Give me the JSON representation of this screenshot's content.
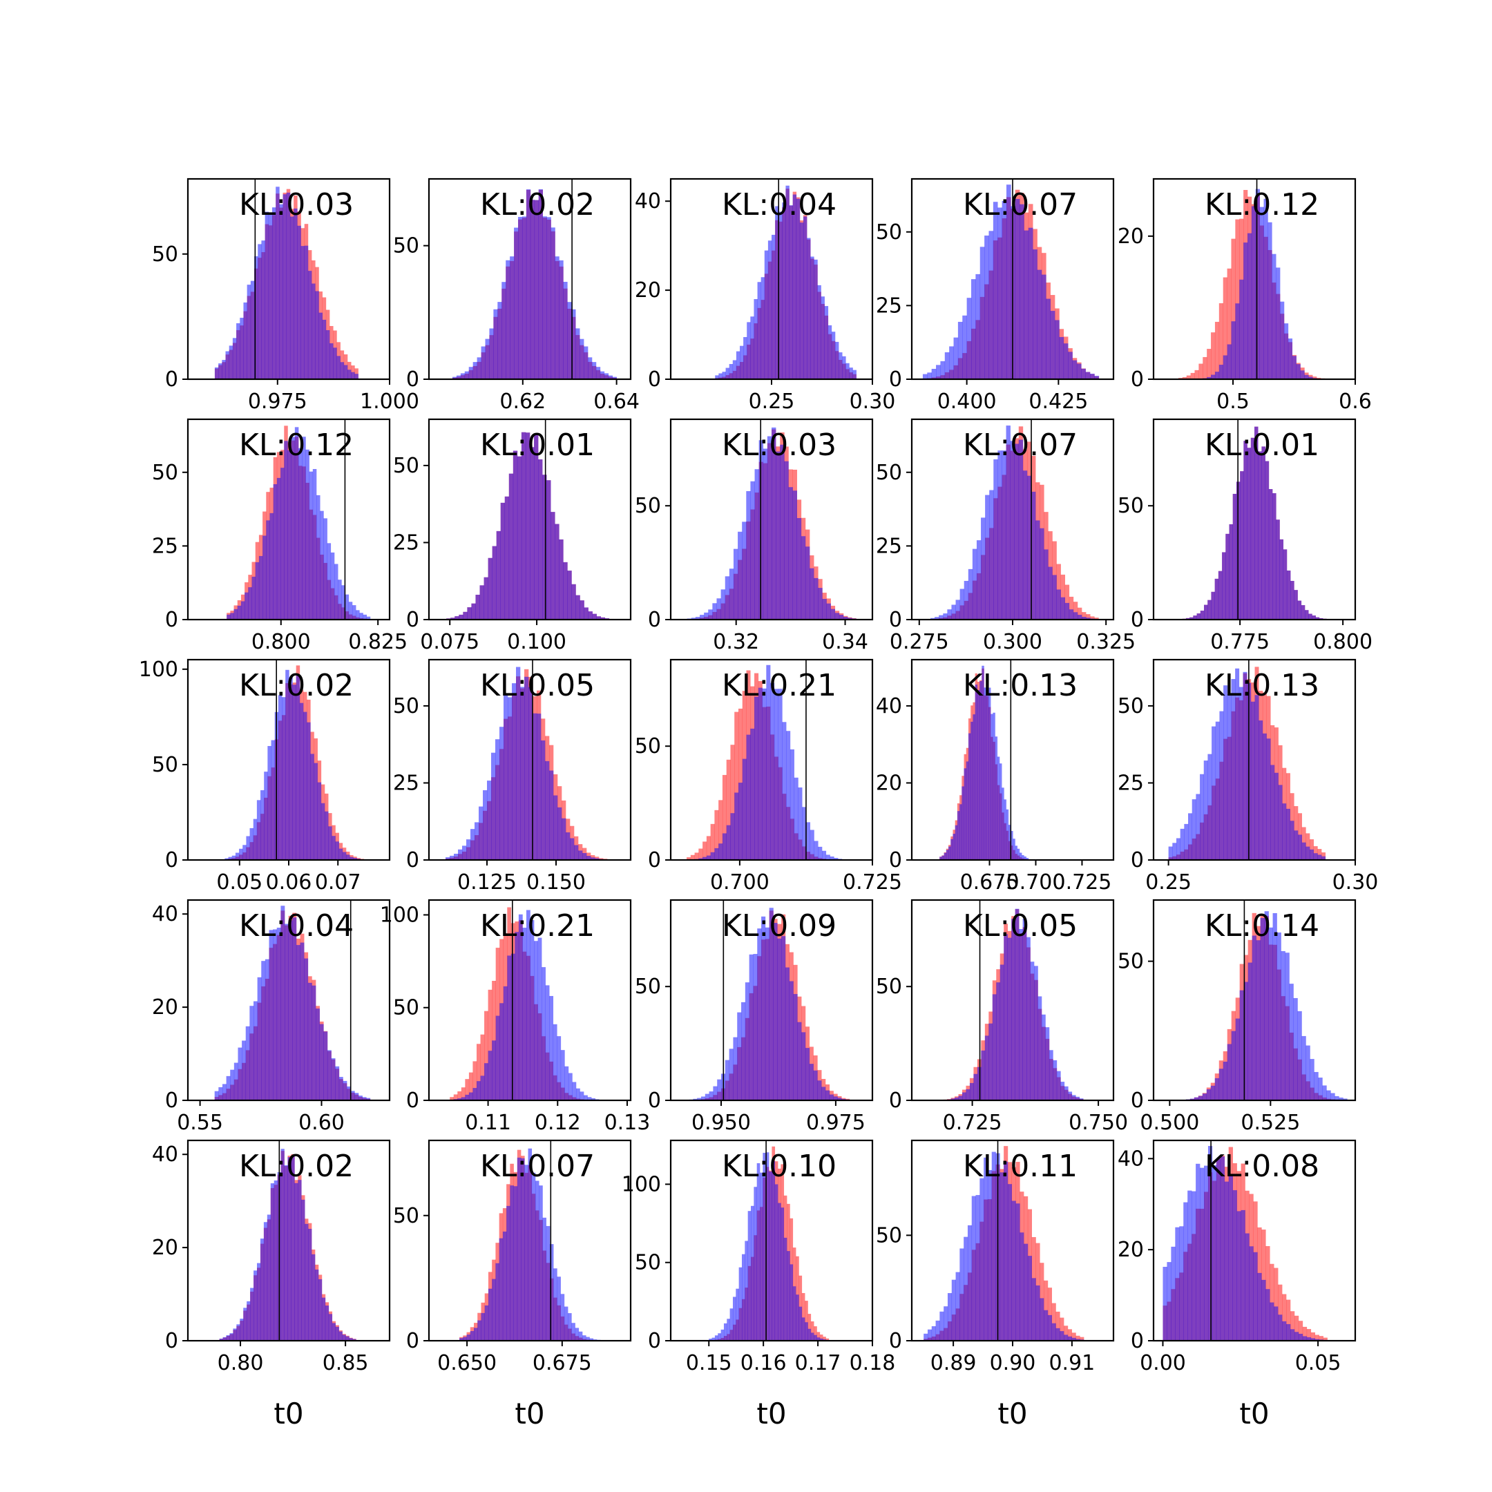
{
  "colors": {
    "series_a": "#ff0000",
    "series_b": "#0000ff",
    "truth_line": "#000000"
  },
  "chart_data": {
    "type": "histogram-grid",
    "rows": 5,
    "cols": 5,
    "series": [
      {
        "color": "#ff0000",
        "opacity": 0.5
      },
      {
        "color": "#0000ff",
        "opacity": 0.5
      }
    ],
    "panels": [
      {
        "kl": "KL:0.03",
        "xlim": [
          0.955,
          1.0
        ],
        "ylim": [
          0,
          80
        ],
        "xticks": [
          "0.975",
          "1.000"
        ],
        "xtick_vals": [
          0.975,
          1.0
        ],
        "yticks": [
          "0",
          "50"
        ],
        "ytick_vals": [
          0,
          50
        ],
        "truth": 0.97,
        "a": {
          "mu": 0.977,
          "sd": 0.0065
        },
        "b": {
          "mu": 0.976,
          "sd": 0.0062
        },
        "range": [
          0.961,
          0.993
        ]
      },
      {
        "kl": "KL:0.02",
        "xlim": [
          0.6,
          0.643
        ],
        "ylim": [
          0,
          75
        ],
        "xticks": [
          "0.62",
          "0.64"
        ],
        "xtick_vals": [
          0.62,
          0.64
        ],
        "yticks": [
          "0",
          "50"
        ],
        "ytick_vals": [
          0,
          50
        ],
        "truth": 0.6305,
        "a": {
          "mu": 0.6225,
          "sd": 0.0055
        },
        "b": {
          "mu": 0.6225,
          "sd": 0.0058
        },
        "range": [
          0.605,
          0.64
        ]
      },
      {
        "kl": "KL:0.04",
        "xlim": [
          0.2,
          0.3
        ],
        "ylim": [
          0,
          45
        ],
        "xticks": [
          "0.25",
          "0.30"
        ],
        "xtick_vals": [
          0.25,
          0.3
        ],
        "yticks": [
          "0",
          "20",
          "40"
        ],
        "ytick_vals": [
          0,
          20,
          40
        ],
        "truth": 0.2535,
        "a": {
          "mu": 0.26,
          "sd": 0.0115
        },
        "b": {
          "mu": 0.259,
          "sd": 0.013
        },
        "range": [
          0.222,
          0.292
        ]
      },
      {
        "kl": "KL:0.07",
        "xlim": [
          0.385,
          0.44
        ],
        "ylim": [
          0,
          68
        ],
        "xticks": [
          "0.400",
          "0.425"
        ],
        "xtick_vals": [
          0.4,
          0.425
        ],
        "yticks": [
          "0",
          "25",
          "50"
        ],
        "ytick_vals": [
          0,
          25,
          50
        ],
        "truth": 0.4125,
        "a": {
          "mu": 0.414,
          "sd": 0.0075
        },
        "b": {
          "mu": 0.4115,
          "sd": 0.0085
        },
        "range": [
          0.388,
          0.436
        ]
      },
      {
        "kl": "KL:0.12",
        "xlim": [
          0.435,
          0.6
        ],
        "ylim": [
          0,
          28
        ],
        "xticks": [
          "0.5",
          "0.6"
        ],
        "xtick_vals": [
          0.5,
          0.6
        ],
        "yticks": [
          "0",
          "20"
        ],
        "ytick_vals": [
          0,
          20
        ],
        "truth": 0.5195,
        "a": {
          "mu": 0.514,
          "sd": 0.018
        },
        "b": {
          "mu": 0.522,
          "sd": 0.014
        },
        "range": [
          0.452,
          0.585
        ]
      },
      {
        "kl": "KL:0.12",
        "xlim": [
          0.776,
          0.828
        ],
        "ylim": [
          0,
          68
        ],
        "xticks": [
          "0.800",
          "0.825"
        ],
        "xtick_vals": [
          0.8,
          0.825
        ],
        "yticks": [
          "0",
          "25",
          "50"
        ],
        "ytick_vals": [
          0,
          25,
          50
        ],
        "truth": 0.8165,
        "a": {
          "mu": 0.802,
          "sd": 0.006
        },
        "b": {
          "mu": 0.804,
          "sd": 0.0065
        },
        "range": [
          0.786,
          0.823
        ]
      },
      {
        "kl": "KL:0.01",
        "xlim": [
          0.069,
          0.127
        ],
        "ylim": [
          0,
          65
        ],
        "xticks": [
          "0.075",
          "0.100"
        ],
        "xtick_vals": [
          0.075,
          0.1
        ],
        "yticks": [
          "0",
          "25",
          "50"
        ],
        "ytick_vals": [
          0,
          25,
          50
        ],
        "truth": 0.1025,
        "a": {
          "mu": 0.0975,
          "sd": 0.0072
        },
        "b": {
          "mu": 0.0975,
          "sd": 0.0072
        },
        "range": [
          0.074,
          0.122
        ]
      },
      {
        "kl": "KL:0.03",
        "xlim": [
          0.308,
          0.345
        ],
        "ylim": [
          0,
          88
        ],
        "xticks": [
          "0.32",
          "0.34"
        ],
        "xtick_vals": [
          0.32,
          0.34
        ],
        "yticks": [
          "0",
          "50"
        ],
        "ytick_vals": [
          0,
          50
        ],
        "truth": 0.3245,
        "a": {
          "mu": 0.3275,
          "sd": 0.0045
        },
        "b": {
          "mu": 0.3265,
          "sd": 0.0047
        },
        "range": [
          0.311,
          0.342
        ]
      },
      {
        "kl": "KL:0.07",
        "xlim": [
          0.273,
          0.327
        ],
        "ylim": [
          0,
          68
        ],
        "xticks": [
          "0.275",
          "0.300",
          "0.325"
        ],
        "xtick_vals": [
          0.275,
          0.3,
          0.325
        ],
        "yticks": [
          "0",
          "25",
          "50"
        ],
        "ytick_vals": [
          0,
          25,
          50
        ],
        "truth": 0.305,
        "a": {
          "mu": 0.302,
          "sd": 0.0068
        },
        "b": {
          "mu": 0.2995,
          "sd": 0.0068
        },
        "range": [
          0.278,
          0.323
        ]
      },
      {
        "kl": "KL:0.01",
        "xlim": [
          0.754,
          0.803
        ],
        "ylim": [
          0,
          88
        ],
        "xticks": [
          "0.775",
          "0.800"
        ],
        "xtick_vals": [
          0.775,
          0.8
        ],
        "yticks": [
          "0",
          "50"
        ],
        "ytick_vals": [
          0,
          50
        ],
        "truth": 0.7745,
        "a": {
          "mu": 0.7785,
          "sd": 0.0052
        },
        "b": {
          "mu": 0.7785,
          "sd": 0.0052
        },
        "range": [
          0.761,
          0.796
        ]
      },
      {
        "kl": "KL:0.02",
        "xlim": [
          0.0395,
          0.0805
        ],
        "ylim": [
          0,
          105
        ],
        "xticks": [
          "0.05",
          "0.06",
          "0.07"
        ],
        "xtick_vals": [
          0.05,
          0.06,
          0.07
        ],
        "yticks": [
          "0",
          "50",
          "100"
        ],
        "ytick_vals": [
          0,
          50,
          100
        ],
        "truth": 0.0575,
        "a": {
          "mu": 0.0615,
          "sd": 0.0042
        },
        "b": {
          "mu": 0.0605,
          "sd": 0.0043
        },
        "range": [
          0.047,
          0.076
        ]
      },
      {
        "kl": "KL:0.05",
        "xlim": [
          0.104,
          0.177
        ],
        "ylim": [
          0,
          65
        ],
        "xticks": [
          "0.125",
          "0.150"
        ],
        "xtick_vals": [
          0.125,
          0.15
        ],
        "yticks": [
          "0",
          "25",
          "50"
        ],
        "ytick_vals": [
          0,
          25,
          50
        ],
        "truth": 0.1415,
        "a": {
          "mu": 0.139,
          "sd": 0.009
        },
        "b": {
          "mu": 0.137,
          "sd": 0.009
        },
        "range": [
          0.11,
          0.17
        ]
      },
      {
        "kl": "KL:0.21",
        "xlim": [
          0.687,
          0.725
        ],
        "ylim": [
          0,
          88
        ],
        "xticks": [
          "0.700",
          "0.725"
        ],
        "xtick_vals": [
          0.7,
          0.725
        ],
        "yticks": [
          "0",
          "50"
        ],
        "ytick_vals": [
          0,
          50
        ],
        "truth": 0.7125,
        "a": {
          "mu": 0.7025,
          "sd": 0.0042
        },
        "b": {
          "mu": 0.7055,
          "sd": 0.0042
        },
        "range": [
          0.69,
          0.72
        ]
      },
      {
        "kl": "KL:0.13",
        "xlim": [
          0.633,
          0.742
        ],
        "ylim": [
          0,
          52
        ],
        "xticks": [
          "0.675",
          "0.700",
          "0.725"
        ],
        "xtick_vals": [
          0.675,
          0.7,
          0.725
        ],
        "yticks": [
          "0",
          "20",
          "40"
        ],
        "ytick_vals": [
          0,
          20,
          40
        ],
        "truth": 0.6865,
        "a": {
          "mu": 0.67,
          "sd": 0.0075
        },
        "b": {
          "mu": 0.6715,
          "sd": 0.008
        },
        "range": [
          0.648,
          0.696
        ]
      },
      {
        "kl": "KL:0.13",
        "xlim": [
          0.246,
          0.3
        ],
        "ylim": [
          0,
          65
        ],
        "xticks": [
          "0.25",
          "0.30"
        ],
        "xtick_vals": [
          0.25,
          0.3
        ],
        "yticks": [
          "0",
          "25",
          "50"
        ],
        "ytick_vals": [
          0,
          25,
          50
        ],
        "truth": 0.2715,
        "a": {
          "mu": 0.2725,
          "sd": 0.0075
        },
        "b": {
          "mu": 0.269,
          "sd": 0.008
        },
        "range": [
          0.25,
          0.292
        ]
      },
      {
        "kl": "KL:0.04",
        "xlim": [
          0.545,
          0.628
        ],
        "ylim": [
          0,
          43
        ],
        "xticks": [
          "0.55",
          "0.60"
        ],
        "xtick_vals": [
          0.55,
          0.6
        ],
        "yticks": [
          "0",
          "20",
          "40"
        ],
        "ytick_vals": [
          0,
          20,
          40
        ],
        "truth": 0.612,
        "a": {
          "mu": 0.5865,
          "sd": 0.0105
        },
        "b": {
          "mu": 0.585,
          "sd": 0.0115
        },
        "range": [
          0.556,
          0.62
        ]
      },
      {
        "kl": "KL:0.21",
        "xlim": [
          0.1015,
          0.1305
        ],
        "ylim": [
          0,
          108
        ],
        "xticks": [
          "0.11",
          "0.12",
          "0.13"
        ],
        "xtick_vals": [
          0.11,
          0.12,
          0.13
        ],
        "yticks": [
          "0",
          "50",
          "100"
        ],
        "ytick_vals": [
          0,
          50,
          100
        ],
        "truth": 0.1135,
        "a": {
          "mu": 0.1135,
          "sd": 0.0031
        },
        "b": {
          "mu": 0.1155,
          "sd": 0.0032
        },
        "range": [
          0.1045,
          0.1265
        ]
      },
      {
        "kl": "KL:0.09",
        "xlim": [
          0.939,
          0.983
        ],
        "ylim": [
          0,
          88
        ],
        "xticks": [
          "0.950",
          "0.975"
        ],
        "xtick_vals": [
          0.95,
          0.975
        ],
        "yticks": [
          "0",
          "50"
        ],
        "ytick_vals": [
          0,
          50
        ],
        "truth": 0.9505,
        "a": {
          "mu": 0.962,
          "sd": 0.005
        },
        "b": {
          "mu": 0.9605,
          "sd": 0.0052
        },
        "range": [
          0.943,
          0.978
        ]
      },
      {
        "kl": "KL:0.05",
        "xlim": [
          0.713,
          0.753
        ],
        "ylim": [
          0,
          88
        ],
        "xticks": [
          "0.725",
          "0.750"
        ],
        "xtick_vals": [
          0.725,
          0.75
        ],
        "yticks": [
          "0",
          "50"
        ],
        "ytick_vals": [
          0,
          50
        ],
        "truth": 0.7265,
        "a": {
          "mu": 0.7335,
          "sd": 0.0042
        },
        "b": {
          "mu": 0.734,
          "sd": 0.0042
        },
        "range": [
          0.717,
          0.747
        ]
      },
      {
        "kl": "KL:0.14",
        "xlim": [
          0.496,
          0.546
        ],
        "ylim": [
          0,
          72
        ],
        "xticks": [
          "0.500",
          "0.525"
        ],
        "xtick_vals": [
          0.5,
          0.525
        ],
        "yticks": [
          "0",
          "50"
        ],
        "ytick_vals": [
          0,
          50
        ],
        "truth": 0.5185,
        "a": {
          "mu": 0.5225,
          "sd": 0.0055
        },
        "b": {
          "mu": 0.5245,
          "sd": 0.0062
        },
        "range": [
          0.503,
          0.544
        ]
      },
      {
        "kl": "KL:0.02",
        "xlim": [
          0.775,
          0.871
        ],
        "ylim": [
          0,
          43
        ],
        "xticks": [
          "0.80",
          "0.85"
        ],
        "xtick_vals": [
          0.8,
          0.85
        ],
        "yticks": [
          "0",
          "20",
          "40"
        ],
        "ytick_vals": [
          0,
          20,
          40
        ],
        "truth": 0.8185,
        "a": {
          "mu": 0.8225,
          "sd": 0.0105
        },
        "b": {
          "mu": 0.822,
          "sd": 0.0105
        },
        "range": [
          0.79,
          0.855
        ]
      },
      {
        "kl": "KL:0.07",
        "xlim": [
          0.64,
          0.693
        ],
        "ylim": [
          0,
          80
        ],
        "xticks": [
          "0.650",
          "0.675"
        ],
        "xtick_vals": [
          0.65,
          0.675
        ],
        "yticks": [
          "0",
          "50"
        ],
        "ytick_vals": [
          0,
          50
        ],
        "truth": 0.672,
        "a": {
          "mu": 0.664,
          "sd": 0.0055
        },
        "b": {
          "mu": 0.6655,
          "sd": 0.0058
        },
        "range": [
          0.648,
          0.686
        ]
      },
      {
        "kl": "KL:0.10",
        "xlim": [
          0.143,
          0.18
        ],
        "ylim": [
          0,
          128
        ],
        "xticks": [
          "0.15",
          "0.16",
          "0.17",
          "0.18"
        ],
        "xtick_vals": [
          0.15,
          0.16,
          0.17,
          0.18
        ],
        "yticks": [
          "0",
          "50",
          "100"
        ],
        "ytick_vals": [
          0,
          50,
          100
        ],
        "truth": 0.1605,
        "a": {
          "mu": 0.162,
          "sd": 0.0033
        },
        "b": {
          "mu": 0.1605,
          "sd": 0.0034
        },
        "range": [
          0.15,
          0.172
        ]
      },
      {
        "kl": "KL:0.11",
        "xlim": [
          0.883,
          0.917
        ],
        "ylim": [
          0,
          95
        ],
        "xticks": [
          "0.89",
          "0.90",
          "0.91"
        ],
        "xtick_vals": [
          0.89,
          0.9,
          0.91
        ],
        "yticks": [
          "0",
          "50"
        ],
        "ytick_vals": [
          0,
          50
        ],
        "truth": 0.8975,
        "a": {
          "mu": 0.899,
          "sd": 0.0045
        },
        "b": {
          "mu": 0.897,
          "sd": 0.0046
        },
        "range": [
          0.885,
          0.912
        ]
      },
      {
        "kl": "KL:0.08",
        "xlim": [
          -0.003,
          0.062
        ],
        "ylim": [
          0,
          44
        ],
        "xticks": [
          "0.00",
          "0.05"
        ],
        "xtick_vals": [
          0.0,
          0.05
        ],
        "yticks": [
          "0",
          "20",
          "40"
        ],
        "ytick_vals": [
          0,
          20,
          40
        ],
        "truth": 0.0155,
        "a": {
          "mu": 0.021,
          "sd": 0.011
        },
        "b": {
          "mu": 0.016,
          "sd": 0.011
        },
        "range": [
          0.0,
          0.053
        ]
      }
    ],
    "xlabel": "t0"
  }
}
